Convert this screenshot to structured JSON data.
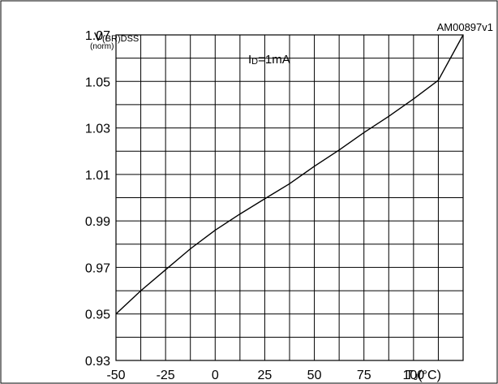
{
  "chart_data": {
    "type": "line",
    "figure_id": "AM00897v1",
    "ylabel_main": "V",
    "ylabel_sub": "(BR)DSS",
    "ylabel_norm": "(norm)",
    "xlabel_main": "T",
    "xlabel_sub": "J",
    "xlabel_unit": "(°C)",
    "annotation_main": "I",
    "annotation_sub": "D",
    "annotation_rest": "=1mA",
    "xlim": [
      -50,
      125
    ],
    "ylim": [
      0.93,
      1.07
    ],
    "x_ticks": [
      -50,
      -25,
      0,
      25,
      50,
      75,
      100
    ],
    "x_tick_labels": [
      "-50",
      "-25",
      "0",
      "25",
      "50",
      "75",
      "100"
    ],
    "y_ticks": [
      0.93,
      0.95,
      0.97,
      0.99,
      1.01,
      1.03,
      1.05,
      1.07
    ],
    "y_tick_labels": [
      "0.93",
      "0.95",
      "0.97",
      "0.99",
      "1.01",
      "1.03",
      "1.05",
      "1.07"
    ],
    "grid": true,
    "series": [
      {
        "x": [
          -50,
          -37.5,
          -25,
          -12.5,
          0,
          12.5,
          25,
          37.5,
          50,
          62.5,
          75,
          87.5,
          100,
          112.5,
          125
        ],
        "y": [
          0.95,
          0.96,
          0.969,
          0.978,
          0.986,
          0.993,
          0.9995,
          1.006,
          1.0135,
          1.0205,
          1.028,
          1.035,
          1.0425,
          1.0505,
          1.07
        ]
      }
    ]
  }
}
